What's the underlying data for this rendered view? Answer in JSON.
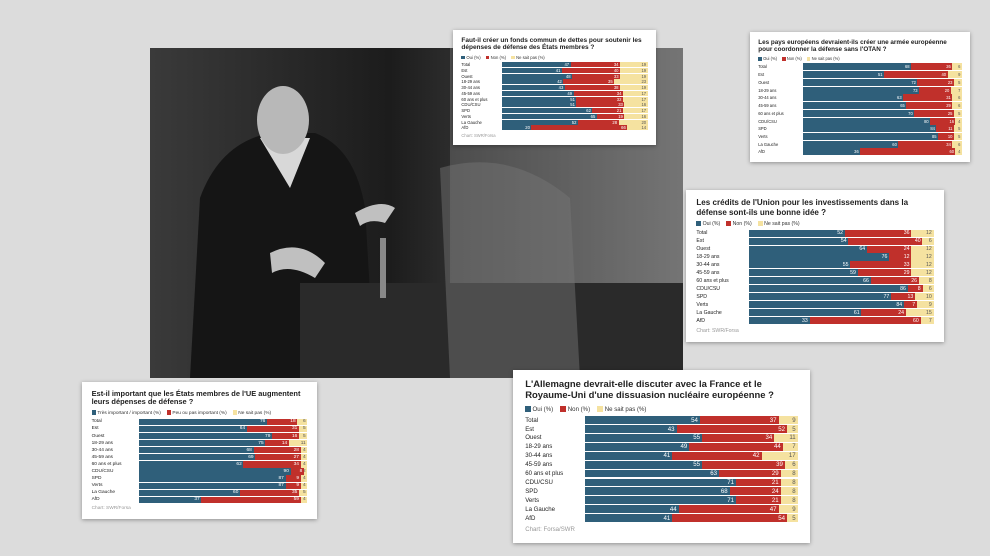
{
  "chart_data": [
    {
      "type": "bar",
      "orientation": "horizontal",
      "stacked": true,
      "title": "Faut-il créer un fonds commun de dettes pour soutenir les dépenses de défense des États membres ?",
      "categories": [
        "Total",
        "Est",
        "Ouest",
        "18-29 ans",
        "30-44 ans",
        "45-59 ans",
        "60 ans et plus",
        "CDU/CSU",
        "SPD",
        "Verts",
        "La Gauche",
        "AfD"
      ],
      "series": [
        {
          "name": "Oui (%)",
          "color": "#2f5f7a",
          "values": [
            47,
            41,
            48,
            42,
            43,
            49,
            51,
            51,
            62,
            65,
            52,
            20
          ]
        },
        {
          "name": "Non (%)",
          "color": "#c0302b",
          "values": [
            34,
            40,
            33,
            35,
            38,
            34,
            32,
            33,
            21,
            19,
            28,
            66
          ]
        },
        {
          "name": "Ne sait pas (%)",
          "color": "#f5e2a0",
          "values": [
            19,
            19,
            19,
            23,
            19,
            17,
            17,
            16,
            17,
            16,
            20,
            14
          ]
        }
      ],
      "source": "Chart: SWR/Forsa"
    },
    {
      "type": "bar",
      "orientation": "horizontal",
      "stacked": true,
      "title": "Les pays européens devraient-ils créer une armée européenne pour coordonner la défense sans l'OTAN ?",
      "categories": [
        "Total",
        "Est",
        "Ouest",
        "18-29 ans",
        "30-44 ans",
        "45-59 ans",
        "60 ans et plus",
        "CDU/CSU",
        "SPD",
        "Verts",
        "La Gauche",
        "AfD"
      ],
      "series": [
        {
          "name": "Oui (%)",
          "color": "#2f5f7a",
          "values": [
            68,
            51,
            72,
            73,
            63,
            65,
            70,
            80,
            84,
            85,
            60,
            36
          ]
        },
        {
          "name": "Non (%)",
          "color": "#c0302b",
          "values": [
            26,
            40,
            23,
            20,
            31,
            29,
            25,
            16,
            11,
            10,
            34,
            60
          ]
        },
        {
          "name": "Ne sait pas (%)",
          "color": "#f5e2a0",
          "values": [
            6,
            9,
            5,
            7,
            6,
            6,
            5,
            4,
            5,
            5,
            6,
            4
          ]
        }
      ]
    },
    {
      "type": "bar",
      "orientation": "horizontal",
      "stacked": true,
      "title": "Les crédits de l'Union pour les investissements dans la défense sont-ils une bonne idée ?",
      "categories": [
        "Total",
        "Est",
        "Ouest",
        "18-29 ans",
        "30-44 ans",
        "45-59 ans",
        "60 ans et plus",
        "CDU/CSU",
        "SPD",
        "Verts",
        "La Gauche",
        "AfD"
      ],
      "series": [
        {
          "name": "Oui (%)",
          "color": "#2f5f7a",
          "values": [
            52,
            54,
            64,
            76,
            55,
            59,
            66,
            86,
            77,
            84,
            61,
            33
          ]
        },
        {
          "name": "Non (%)",
          "color": "#c0302b",
          "values": [
            36,
            40,
            24,
            12,
            33,
            29,
            26,
            8,
            13,
            7,
            24,
            60
          ]
        },
        {
          "name": "Ne sait pas (%)",
          "color": "#f5e2a0",
          "values": [
            12,
            6,
            12,
            12,
            12,
            12,
            8,
            6,
            10,
            9,
            15,
            7
          ]
        }
      ],
      "source": "Chart: SWR/Forsa"
    },
    {
      "type": "bar",
      "orientation": "horizontal",
      "stacked": true,
      "title": "Est-il important que les États membres de l'UE augmentent leurs dépenses de défense ?",
      "categories": [
        "Total",
        "Est",
        "Ouest",
        "18-29 ans",
        "30-44 ans",
        "45-59 ans",
        "60 ans et plus",
        "CDU/CSU",
        "SPD",
        "Verts",
        "La Gauche",
        "AfD"
      ],
      "series": [
        {
          "name": "Très important / important (%)",
          "color": "#2f5f7a",
          "values": [
            76,
            64,
            79,
            75,
            68,
            69,
            62,
            90,
            87,
            87,
            60,
            37
          ]
        },
        {
          "name": "Peu ou pas important (%)",
          "color": "#c0302b",
          "values": [
            18,
            31,
            16,
            14,
            28,
            27,
            34,
            8,
            9,
            9,
            35,
            59
          ]
        },
        {
          "name": "Ne sait pas (%)",
          "color": "#f5e2a0",
          "values": [
            6,
            5,
            5,
            11,
            4,
            4,
            4,
            2,
            4,
            4,
            5,
            4
          ]
        }
      ],
      "source": "Chart: SWR/Forsa"
    },
    {
      "type": "bar",
      "orientation": "horizontal",
      "stacked": true,
      "title": "L'Allemagne devrait-elle discuter avec la France et le Royaume-Uni d'une dissuasion nucléaire européenne ?",
      "categories": [
        "Total",
        "Est",
        "Ouest",
        "18-29 ans",
        "30-44 ans",
        "45-59 ans",
        "60 ans et plus",
        "CDU/CSU",
        "SPD",
        "Verts",
        "La Gauche",
        "AfD"
      ],
      "series": [
        {
          "name": "Oui (%)",
          "color": "#2f5f7a",
          "values": [
            54,
            43,
            55,
            49,
            41,
            55,
            63,
            71,
            68,
            71,
            44,
            41
          ]
        },
        {
          "name": "Non (%)",
          "color": "#c0302b",
          "values": [
            37,
            52,
            34,
            44,
            42,
            39,
            29,
            21,
            24,
            21,
            47,
            54
          ]
        },
        {
          "name": "Ne sait pas (%)",
          "color": "#f5e2a0",
          "values": [
            9,
            5,
            11,
            7,
            17,
            6,
            8,
            8,
            8,
            8,
            9,
            5
          ]
        }
      ],
      "source": "Chart: Forsa/SWR"
    }
  ]
}
